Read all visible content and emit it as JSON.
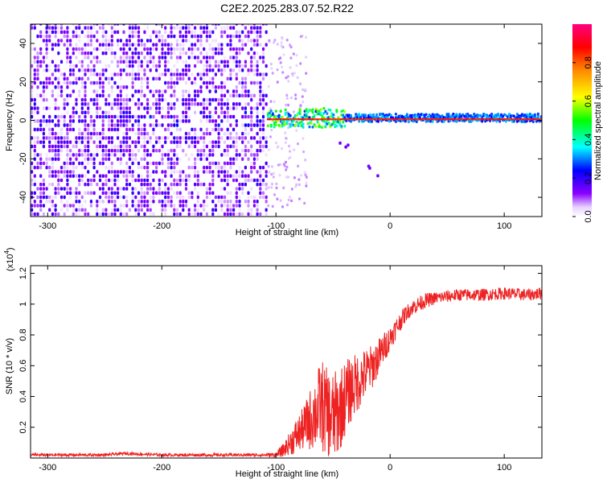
{
  "title": "C2E2.2025.283.07.52.R22",
  "chart_data": [
    {
      "type": "heatmap",
      "name": "spectrogram",
      "xlabel": "Height of straight line (km)",
      "ylabel": "Frequency (Hz)",
      "xlim": [
        -315,
        133
      ],
      "ylim": [
        -50,
        50
      ],
      "xticks": [
        -300,
        -200,
        -100,
        0,
        100
      ],
      "yticks": [
        -40,
        -20,
        0,
        20,
        40
      ],
      "colorbar": {
        "label": "Normalized spectral amplitude",
        "range": [
          0,
          1
        ],
        "ticks": [
          0.0,
          0.2,
          0.4,
          0.6,
          0.8
        ],
        "colors": [
          "#ffffff",
          "#8a00ff",
          "#0000ff",
          "#00ffff",
          "#00ff00",
          "#ffff00",
          "#ff8800",
          "#ff0000",
          "#ff0080"
        ]
      },
      "regions": [
        {
          "description": "broadband noise",
          "x": [
            -315,
            -108
          ],
          "f": [
            -50,
            50
          ],
          "amplitude": [
            0.02,
            0.2
          ]
        },
        {
          "description": "narrow carrier line",
          "x": [
            -108,
            133
          ],
          "f": [
            -2,
            4
          ],
          "amplitude": [
            0.3,
            0.9
          ]
        },
        {
          "description": "scattered points",
          "x": [
            -45,
            -18
          ],
          "f": [
            -28,
            -20
          ],
          "amplitude": [
            0.1,
            0.15
          ]
        }
      ]
    },
    {
      "type": "line",
      "name": "snr",
      "xlabel": "Height of straight line (km)",
      "ylabel": "SNR (10 * v/v)",
      "yscale_label": "(x10",
      "yscale_exp": "4",
      "xlim": [
        -315,
        133
      ],
      "ylim": [
        0,
        1.25
      ],
      "xticks": [
        -300,
        -200,
        -100,
        0,
        100
      ],
      "yticks": [
        0.2,
        0.4,
        0.6,
        0.8,
        1.0,
        1.2
      ],
      "color": "#ee2222",
      "series": [
        {
          "x": [
            -315,
            -250,
            -232,
            -200,
            -150,
            -110,
            -100,
            -95,
            -90,
            -85,
            -80,
            -75,
            -70,
            -65,
            -60,
            -55,
            -50,
            -45,
            -40,
            -35,
            -30,
            -25,
            -20,
            -15,
            -10,
            -5,
            0,
            5,
            10,
            15,
            20,
            25,
            30,
            40,
            50,
            60,
            80,
            100,
            120,
            133
          ],
          "y": [
            0.02,
            0.02,
            0.03,
            0.02,
            0.02,
            0.02,
            0.02,
            0.04,
            0.08,
            0.12,
            0.16,
            0.2,
            0.25,
            0.3,
            0.35,
            0.28,
            0.26,
            0.3,
            0.38,
            0.44,
            0.48,
            0.52,
            0.56,
            0.6,
            0.66,
            0.72,
            0.78,
            0.84,
            0.9,
            0.95,
            0.98,
            1.0,
            1.02,
            1.04,
            1.05,
            1.06,
            1.06,
            1.07,
            1.06,
            1.07
          ],
          "noise": [
            0.01,
            0.01,
            0.01,
            0.01,
            0.01,
            0.01,
            0.02,
            0.04,
            0.06,
            0.1,
            0.12,
            0.15,
            0.2,
            0.25,
            0.3,
            0.3,
            0.3,
            0.28,
            0.25,
            0.22,
            0.2,
            0.18,
            0.16,
            0.14,
            0.12,
            0.1,
            0.08,
            0.07,
            0.06,
            0.05,
            0.05,
            0.05,
            0.05,
            0.04,
            0.04,
            0.04,
            0.04,
            0.04,
            0.04,
            0.04
          ]
        }
      ]
    }
  ]
}
